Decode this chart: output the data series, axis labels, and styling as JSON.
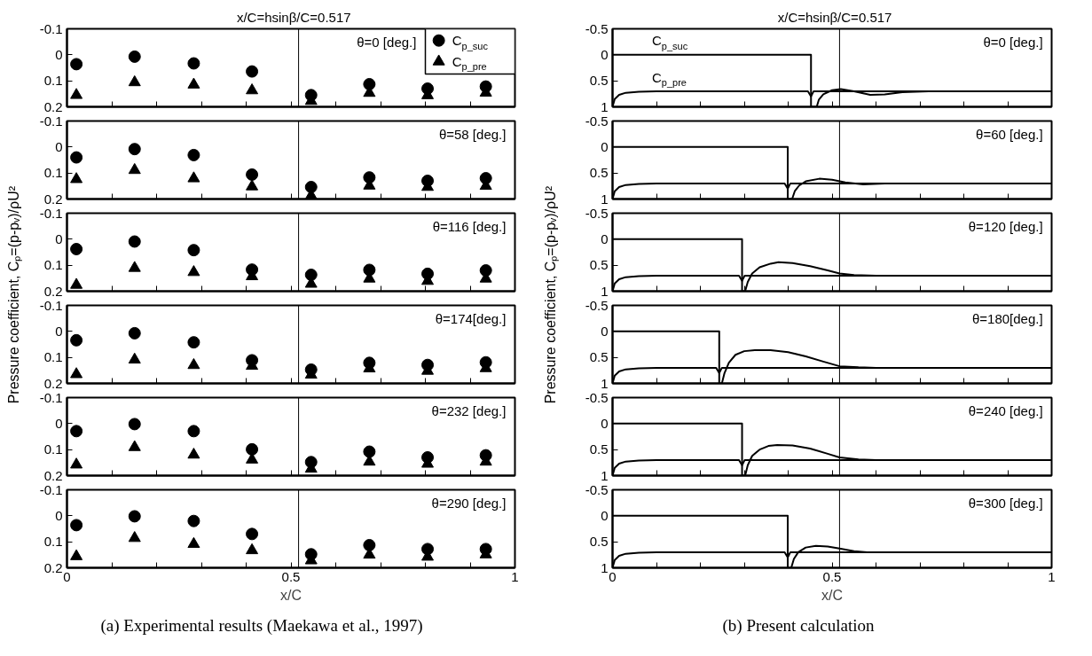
{
  "chart_data": [
    {
      "type": "scatter",
      "ylabel": "Pressure coefficient, Cₚ=(p-pᵥ)/ρU²",
      "legend": "top right",
      "tick_labels": "y",
      "annotations": [
        "θ=0 [deg.]"
      ],
      "ref_lines": [
        {
          "axis": "x",
          "value": 0.517,
          "label": "x/C=hsinβ/C=0.517"
        }
      ],
      "xlim": [
        0,
        1
      ],
      "xticks": [
        0,
        {
          "value": 0.1,
          "label": null
        },
        {
          "value": 0.2,
          "label": null
        },
        {
          "value": 0.3,
          "label": null
        },
        {
          "value": 0.4,
          "label": null
        },
        0.5,
        {
          "value": 0.6,
          "label": null
        },
        {
          "value": 0.7,
          "label": null
        },
        {
          "value": 0.8,
          "label": null
        },
        {
          "value": 0.9,
          "label": null
        },
        1
      ],
      "ylim": [
        0.2,
        -0.1
      ],
      "yticks": [
        -0.1,
        0,
        0.1,
        0.2
      ],
      "x": [
        0.021,
        0.151,
        0.283,
        0.413,
        0.545,
        0.675,
        0.805,
        0.935
      ],
      "series": [
        {
          "name": "C$_{p_suc}$",
          "color": "#000000",
          "marker": "circle",
          "values": [
            0.036,
            0.007,
            0.033,
            0.064,
            0.155,
            0.113,
            0.13,
            0.122
          ]
        },
        {
          "name": "C$_{p_pre}$",
          "color": "#000000",
          "marker": "triangle",
          "values": [
            0.155,
            0.106,
            0.115,
            0.137,
            0.178,
            0.147,
            0.156,
            0.146
          ]
        }
      ]
    },
    {
      "type": "scatter",
      "tick_labels": "y",
      "annotations": [
        "θ=58 [deg.]"
      ],
      "ref_lines": [
        {
          "axis": "x",
          "value": 0.517
        }
      ],
      "xlim": [
        0,
        1
      ],
      "xticks": [
        0,
        {
          "value": 0.1,
          "label": null
        },
        {
          "value": 0.2,
          "label": null
        },
        {
          "value": 0.3,
          "label": null
        },
        {
          "value": 0.4,
          "label": null
        },
        0.5,
        {
          "value": 0.6,
          "label": null
        },
        {
          "value": 0.7,
          "label": null
        },
        {
          "value": 0.8,
          "label": null
        },
        {
          "value": 0.9,
          "label": null
        },
        1
      ],
      "ylim": [
        0.2,
        -0.1
      ],
      "yticks": [
        -0.1,
        0,
        0.1,
        0.2
      ],
      "x": [
        0.021,
        0.151,
        0.283,
        0.413,
        0.545,
        0.675,
        0.805,
        0.935
      ],
      "series": [
        {
          "color": "#000000",
          "marker": "circle",
          "values": [
            0.04,
            0.008,
            0.031,
            0.106,
            0.154,
            0.117,
            0.13,
            0.12
          ]
        },
        {
          "color": "#000000",
          "marker": "triangle",
          "values": [
            0.124,
            0.089,
            0.121,
            0.152,
            0.187,
            0.149,
            0.154,
            0.15
          ]
        }
      ]
    },
    {
      "type": "scatter",
      "tick_labels": "y",
      "annotations": [
        "θ=116 [deg.]"
      ],
      "ref_lines": [
        {
          "axis": "x",
          "value": 0.517
        }
      ],
      "xlim": [
        0,
        1
      ],
      "xticks": [
        0,
        {
          "value": 0.1,
          "label": null
        },
        {
          "value": 0.2,
          "label": null
        },
        {
          "value": 0.3,
          "label": null
        },
        {
          "value": 0.4,
          "label": null
        },
        0.5,
        {
          "value": 0.6,
          "label": null
        },
        {
          "value": 0.7,
          "label": null
        },
        {
          "value": 0.8,
          "label": null
        },
        {
          "value": 0.9,
          "label": null
        },
        1
      ],
      "ylim": [
        0.2,
        -0.1
      ],
      "yticks": [
        -0.1,
        0,
        0.1,
        0.2
      ],
      "x": [
        0.021,
        0.151,
        0.283,
        0.413,
        0.545,
        0.675,
        0.805,
        0.935
      ],
      "series": [
        {
          "color": "#000000",
          "marker": "circle",
          "values": [
            0.038,
            0.009,
            0.042,
            0.117,
            0.137,
            0.118,
            0.133,
            0.12
          ]
        },
        {
          "color": "#000000",
          "marker": "triangle",
          "values": [
            0.176,
            0.111,
            0.127,
            0.143,
            0.172,
            0.152,
            0.161,
            0.152
          ]
        }
      ]
    },
    {
      "type": "scatter",
      "tick_labels": "y",
      "annotations": [
        "θ=174[deg.]"
      ],
      "ref_lines": [
        {
          "axis": "x",
          "value": 0.517
        }
      ],
      "xlim": [
        0,
        1
      ],
      "xticks": [
        0,
        {
          "value": 0.1,
          "label": null
        },
        {
          "value": 0.2,
          "label": null
        },
        {
          "value": 0.3,
          "label": null
        },
        {
          "value": 0.4,
          "label": null
        },
        0.5,
        {
          "value": 0.6,
          "label": null
        },
        {
          "value": 0.7,
          "label": null
        },
        {
          "value": 0.8,
          "label": null
        },
        {
          "value": 0.9,
          "label": null
        },
        1
      ],
      "ylim": [
        0.2,
        -0.1
      ],
      "yticks": [
        -0.1,
        0,
        0.1,
        0.2
      ],
      "x": [
        0.021,
        0.151,
        0.283,
        0.413,
        0.545,
        0.675,
        0.805,
        0.935
      ],
      "series": [
        {
          "color": "#000000",
          "marker": "circle",
          "values": [
            0.034,
            0.007,
            0.042,
            0.111,
            0.147,
            0.121,
            0.129,
            0.119
          ]
        },
        {
          "color": "#000000",
          "marker": "triangle",
          "values": [
            0.165,
            0.109,
            0.13,
            0.133,
            0.167,
            0.143,
            0.152,
            0.142
          ]
        }
      ]
    },
    {
      "type": "scatter",
      "tick_labels": "y",
      "annotations": [
        "θ=232 [deg.]"
      ],
      "ref_lines": [
        {
          "axis": "x",
          "value": 0.517
        }
      ],
      "xlim": [
        0,
        1
      ],
      "xticks": [
        0,
        {
          "value": 0.1,
          "label": null
        },
        {
          "value": 0.2,
          "label": null
        },
        {
          "value": 0.3,
          "label": null
        },
        {
          "value": 0.4,
          "label": null
        },
        0.5,
        {
          "value": 0.6,
          "label": null
        },
        {
          "value": 0.7,
          "label": null
        },
        {
          "value": 0.8,
          "label": null
        },
        {
          "value": 0.9,
          "label": null
        },
        1
      ],
      "ylim": [
        0.2,
        -0.1
      ],
      "yticks": [
        -0.1,
        0,
        0.1,
        0.2
      ],
      "x": [
        0.021,
        0.151,
        0.283,
        0.413,
        0.545,
        0.675,
        0.805,
        0.935
      ],
      "series": [
        {
          "color": "#000000",
          "marker": "circle",
          "values": [
            0.029,
            0.002,
            0.029,
            0.099,
            0.148,
            0.108,
            0.13,
            0.122
          ]
        },
        {
          "color": "#000000",
          "marker": "triangle",
          "values": [
            0.158,
            0.091,
            0.12,
            0.139,
            0.174,
            0.147,
            0.155,
            0.147
          ]
        }
      ]
    },
    {
      "type": "scatter",
      "xlabel": "x/C",
      "annotations": [
        "θ=290 [deg.]",
        "(a) Experimental results (Maekawa et al., 1997)"
      ],
      "ref_lines": [
        {
          "axis": "x",
          "value": 0.517
        }
      ],
      "xlim": [
        0,
        1
      ],
      "xticks": [
        0,
        {
          "value": 0.1,
          "label": null
        },
        {
          "value": 0.2,
          "label": null
        },
        {
          "value": 0.3,
          "label": null
        },
        {
          "value": 0.4,
          "label": null
        },
        0.5,
        {
          "value": 0.6,
          "label": null
        },
        {
          "value": 0.7,
          "label": null
        },
        {
          "value": 0.8,
          "label": null
        },
        {
          "value": 0.9,
          "label": null
        },
        1
      ],
      "ylim": [
        0.2,
        -0.1
      ],
      "yticks": [
        -0.1,
        0,
        0.1,
        0.2
      ],
      "x": [
        0.021,
        0.151,
        0.283,
        0.413,
        0.545,
        0.675,
        0.805,
        0.935
      ],
      "series": [
        {
          "color": "#000000",
          "marker": "circle",
          "values": [
            0.036,
            0.002,
            0.02,
            0.07,
            0.148,
            0.113,
            0.128,
            0.128
          ]
        },
        {
          "color": "#000000",
          "marker": "triangle",
          "values": [
            0.156,
            0.086,
            0.109,
            0.133,
            0.172,
            0.15,
            0.158,
            0.149
          ]
        }
      ]
    },
    {
      "type": "line",
      "ylabel": "Pressure coefficient, Cₚ=(p-pᵥ)/ρU²",
      "tick_labels": "y",
      "annotations": [
        "θ=0 [deg.]"
      ],
      "ref_lines": [
        {
          "axis": "x",
          "value": 0.517,
          "label": "x/C=hsinβ/C=0.517"
        }
      ],
      "xlim": [
        0,
        1
      ],
      "xticks": [
        0,
        {
          "value": 0.1,
          "label": null
        },
        {
          "value": 0.2,
          "label": null
        },
        {
          "value": 0.3,
          "label": null
        },
        {
          "value": 0.4,
          "label": null
        },
        0.5,
        {
          "value": 0.6,
          "label": null
        },
        {
          "value": 0.7,
          "label": null
        },
        {
          "value": 0.8,
          "label": null
        },
        {
          "value": 0.9,
          "label": null
        },
        1
      ],
      "ylim": [
        1,
        -0.5
      ],
      "yticks": [
        -0.5,
        0,
        0.5,
        1
      ],
      "series": [
        {
          "name": "C$_{p_suc}$",
          "color": "#000000",
          "x": [
            0,
            0.452,
            0.452,
            0.465,
            0.47,
            0.48,
            0.5,
            0.52,
            0.55,
            0.587,
            0.62,
            0.66,
            0.72,
            1.0
          ],
          "values": [
            0,
            0,
            1,
            1,
            0.86,
            0.76,
            0.68,
            0.66,
            0.7,
            0.77,
            0.76,
            0.72,
            0.7,
            0.7
          ]
        },
        {
          "name": "C$_{p_pre}$",
          "color": "#000000",
          "x": [
            0,
            0.005,
            0.015,
            0.03,
            0.06,
            0.1,
            0.445,
            0.452,
            0.458,
            1.0
          ],
          "values": [
            1,
            0.85,
            0.77,
            0.73,
            0.71,
            0.7,
            0.7,
            0.8,
            0.7,
            0.7
          ]
        }
      ]
    },
    {
      "type": "line",
      "tick_labels": "y",
      "annotations": [
        "θ=60 [deg.]"
      ],
      "ref_lines": [
        {
          "axis": "x",
          "value": 0.517
        }
      ],
      "xlim": [
        0,
        1
      ],
      "xticks": [
        0,
        {
          "value": 0.1,
          "label": null
        },
        {
          "value": 0.2,
          "label": null
        },
        {
          "value": 0.3,
          "label": null
        },
        {
          "value": 0.4,
          "label": null
        },
        0.5,
        {
          "value": 0.6,
          "label": null
        },
        {
          "value": 0.7,
          "label": null
        },
        {
          "value": 0.8,
          "label": null
        },
        {
          "value": 0.9,
          "label": null
        },
        1
      ],
      "ylim": [
        1,
        -0.5
      ],
      "yticks": [
        -0.5,
        0,
        0.5,
        1
      ],
      "series": [
        {
          "color": "#000000",
          "x": [
            0,
            0.399,
            0.399,
            0.409,
            0.415,
            0.425,
            0.44,
            0.471,
            0.5,
            0.53,
            0.571,
            0.62,
            1.0
          ],
          "values": [
            0,
            0,
            1,
            1,
            0.85,
            0.74,
            0.66,
            0.61,
            0.63,
            0.68,
            0.72,
            0.7,
            0.7
          ]
        },
        {
          "color": "#000000",
          "x": [
            0,
            0.005,
            0.015,
            0.03,
            0.06,
            0.1,
            0.392,
            0.399,
            0.405,
            1.0
          ],
          "values": [
            1,
            0.85,
            0.77,
            0.73,
            0.71,
            0.7,
            0.7,
            0.8,
            0.7,
            0.7
          ]
        }
      ]
    },
    {
      "type": "line",
      "tick_labels": "y",
      "annotations": [
        "θ=120 [deg.]"
      ],
      "ref_lines": [
        {
          "axis": "x",
          "value": 0.517
        }
      ],
      "xlim": [
        0,
        1
      ],
      "xticks": [
        0,
        {
          "value": 0.1,
          "label": null
        },
        {
          "value": 0.2,
          "label": null
        },
        {
          "value": 0.3,
          "label": null
        },
        {
          "value": 0.4,
          "label": null
        },
        0.5,
        {
          "value": 0.6,
          "label": null
        },
        {
          "value": 0.7,
          "label": null
        },
        {
          "value": 0.8,
          "label": null
        },
        {
          "value": 0.9,
          "label": null
        },
        1
      ],
      "ylim": [
        1,
        -0.5
      ],
      "yticks": [
        -0.5,
        0,
        0.5,
        1
      ],
      "series": [
        {
          "color": "#000000",
          "x": [
            0,
            0.295,
            0.295,
            0.302,
            0.308,
            0.318,
            0.335,
            0.36,
            0.378,
            0.41,
            0.45,
            0.49,
            0.517,
            0.55,
            0.6,
            1.0
          ],
          "values": [
            0,
            0,
            1,
            1,
            0.82,
            0.66,
            0.54,
            0.47,
            0.44,
            0.46,
            0.52,
            0.6,
            0.66,
            0.69,
            0.7,
            0.7
          ]
        },
        {
          "color": "#000000",
          "x": [
            0,
            0.005,
            0.015,
            0.03,
            0.06,
            0.1,
            0.288,
            0.295,
            0.301,
            1.0
          ],
          "values": [
            1,
            0.85,
            0.77,
            0.73,
            0.71,
            0.7,
            0.7,
            0.8,
            0.7,
            0.7
          ]
        }
      ]
    },
    {
      "type": "line",
      "tick_labels": "y",
      "annotations": [
        "θ=180[deg.]"
      ],
      "ref_lines": [
        {
          "axis": "x",
          "value": 0.517
        }
      ],
      "xlim": [
        0,
        1
      ],
      "xticks": [
        0,
        {
          "value": 0.1,
          "label": null
        },
        {
          "value": 0.2,
          "label": null
        },
        {
          "value": 0.3,
          "label": null
        },
        {
          "value": 0.4,
          "label": null
        },
        0.5,
        {
          "value": 0.6,
          "label": null
        },
        {
          "value": 0.7,
          "label": null
        },
        {
          "value": 0.8,
          "label": null
        },
        {
          "value": 0.9,
          "label": null
        },
        1
      ],
      "ylim": [
        1,
        -0.5
      ],
      "yticks": [
        -0.5,
        0,
        0.5,
        1
      ],
      "series": [
        {
          "color": "#000000",
          "x": [
            0,
            0.243,
            0.243,
            0.249,
            0.255,
            0.265,
            0.28,
            0.3,
            0.324,
            0.36,
            0.4,
            0.44,
            0.48,
            0.517,
            0.56,
            0.6,
            1.0
          ],
          "values": [
            0,
            0,
            1,
            1,
            0.8,
            0.6,
            0.45,
            0.38,
            0.36,
            0.36,
            0.4,
            0.48,
            0.58,
            0.67,
            0.69,
            0.7,
            0.7
          ]
        },
        {
          "color": "#000000",
          "x": [
            0,
            0.005,
            0.015,
            0.03,
            0.06,
            0.1,
            0.236,
            0.243,
            0.249,
            1.0
          ],
          "values": [
            1,
            0.85,
            0.77,
            0.73,
            0.71,
            0.7,
            0.7,
            0.8,
            0.7,
            0.7
          ]
        }
      ]
    },
    {
      "type": "line",
      "tick_labels": "y",
      "annotations": [
        "θ=240 [deg.]"
      ],
      "ref_lines": [
        {
          "axis": "x",
          "value": 0.517
        }
      ],
      "xlim": [
        0,
        1
      ],
      "xticks": [
        0,
        {
          "value": 0.1,
          "label": null
        },
        {
          "value": 0.2,
          "label": null
        },
        {
          "value": 0.3,
          "label": null
        },
        {
          "value": 0.4,
          "label": null
        },
        0.5,
        {
          "value": 0.6,
          "label": null
        },
        {
          "value": 0.7,
          "label": null
        },
        {
          "value": 0.8,
          "label": null
        },
        {
          "value": 0.9,
          "label": null
        },
        1
      ],
      "ylim": [
        1,
        -0.5
      ],
      "yticks": [
        -0.5,
        0,
        0.5,
        1
      ],
      "series": [
        {
          "color": "#000000",
          "x": [
            0,
            0.295,
            0.295,
            0.302,
            0.308,
            0.318,
            0.335,
            0.355,
            0.375,
            0.41,
            0.45,
            0.49,
            0.517,
            0.56,
            0.6,
            1.0
          ],
          "values": [
            0,
            0,
            1,
            1,
            0.8,
            0.62,
            0.5,
            0.43,
            0.41,
            0.42,
            0.48,
            0.58,
            0.65,
            0.69,
            0.7,
            0.7
          ]
        },
        {
          "color": "#000000",
          "x": [
            0,
            0.005,
            0.015,
            0.03,
            0.06,
            0.1,
            0.288,
            0.295,
            0.301,
            1.0
          ],
          "values": [
            1,
            0.85,
            0.77,
            0.73,
            0.71,
            0.7,
            0.7,
            0.8,
            0.7,
            0.7
          ]
        }
      ]
    },
    {
      "type": "line",
      "xlabel": "x/C",
      "annotations": [
        "θ=300 [deg.]",
        "(b) Present calculation"
      ],
      "ref_lines": [
        {
          "axis": "x",
          "value": 0.517
        }
      ],
      "xlim": [
        0,
        1
      ],
      "xticks": [
        0,
        {
          "value": 0.1,
          "label": null
        },
        {
          "value": 0.2,
          "label": null
        },
        {
          "value": 0.3,
          "label": null
        },
        {
          "value": 0.4,
          "label": null
        },
        0.5,
        {
          "value": 0.6,
          "label": null
        },
        {
          "value": 0.7,
          "label": null
        },
        {
          "value": 0.8,
          "label": null
        },
        {
          "value": 0.9,
          "label": null
        },
        1
      ],
      "ylim": [
        1,
        -0.5
      ],
      "yticks": [
        -0.5,
        0,
        0.5,
        1
      ],
      "series": [
        {
          "color": "#000000",
          "x": [
            0,
            0.399,
            0.399,
            0.407,
            0.413,
            0.423,
            0.44,
            0.463,
            0.49,
            0.517,
            0.55,
            0.58,
            1.0
          ],
          "values": [
            0,
            0,
            1,
            1,
            0.83,
            0.7,
            0.61,
            0.58,
            0.59,
            0.63,
            0.68,
            0.7,
            0.7
          ]
        },
        {
          "color": "#000000",
          "x": [
            0,
            0.005,
            0.015,
            0.03,
            0.06,
            0.1,
            0.392,
            0.399,
            0.405,
            1.0
          ],
          "values": [
            1,
            0.85,
            0.77,
            0.73,
            0.71,
            0.7,
            0.7,
            0.8,
            0.7,
            0.7
          ]
        }
      ]
    }
  ]
}
